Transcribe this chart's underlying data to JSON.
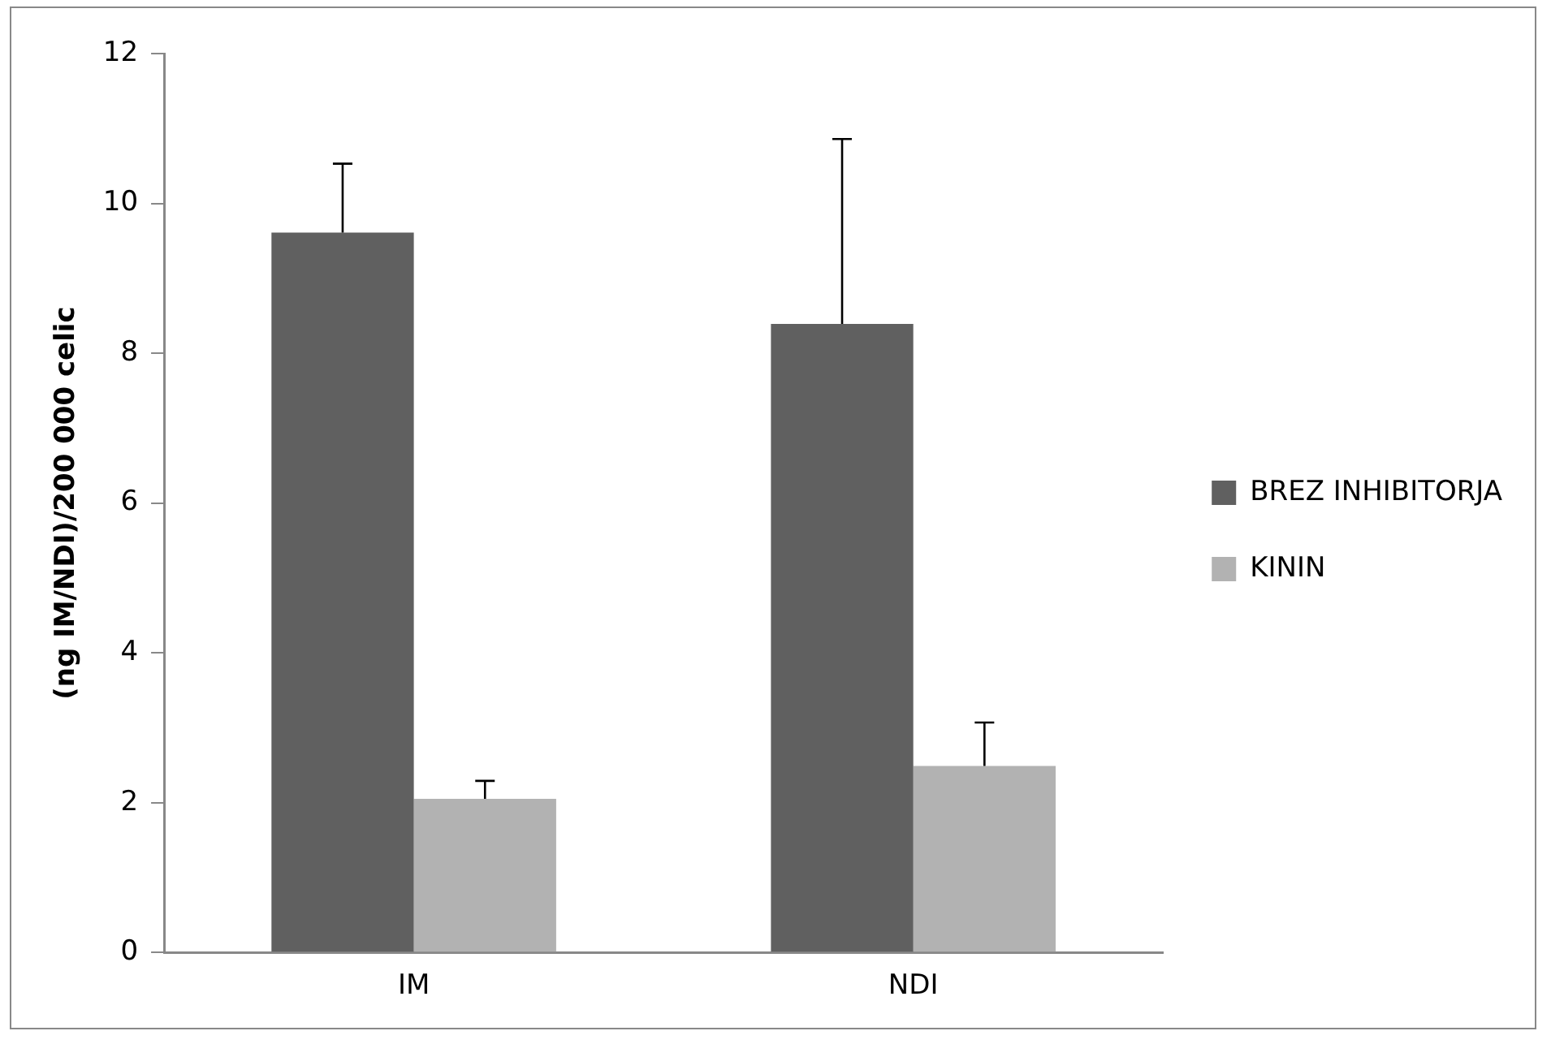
{
  "chart_data": {
    "type": "bar",
    "ylabel": "(ng IM/NDI)/200 000 celic",
    "categories": [
      "IM",
      "NDI"
    ],
    "series": [
      {
        "name": "BREZ INHIBITORJA",
        "color": "#606060",
        "values": [
          9.61,
          8.39
        ],
        "errors": [
          0.92,
          2.47
        ]
      },
      {
        "name": "KININ",
        "color": "#b2b2b2",
        "values": [
          2.05,
          2.49
        ],
        "errors": [
          0.24,
          0.58
        ]
      }
    ],
    "ylim": [
      0,
      12
    ],
    "yticks": [
      0,
      2,
      4,
      6,
      8,
      10,
      12
    ],
    "grid": false,
    "legend": "right"
  }
}
